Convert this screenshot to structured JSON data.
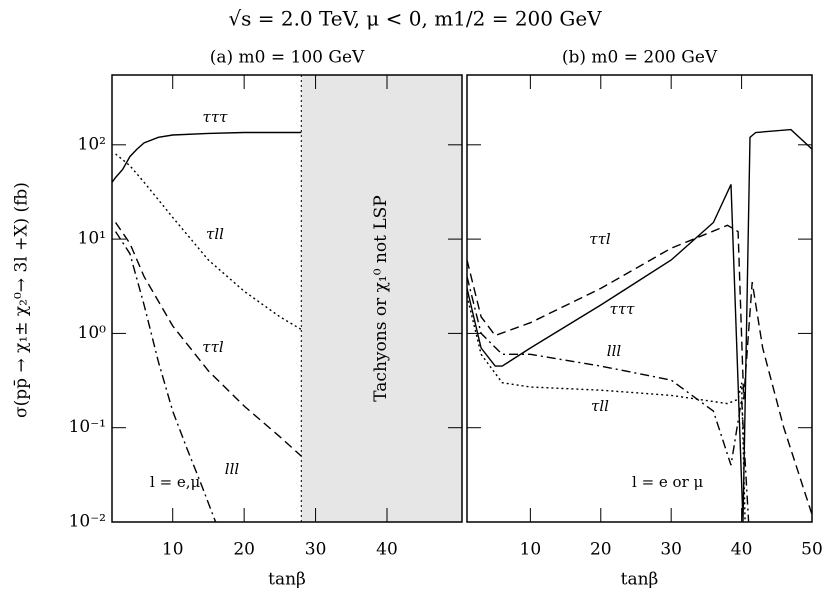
{
  "title": "√s = 2.0 TeV, μ < 0, m1/2 = 200 GeV",
  "chart_data": [
    {
      "type": "line",
      "title": "(a) m0 = 100 GeV",
      "xlabel": "tanβ",
      "ylabel": "σ(pp̄ → χ₁± χ₂⁰→ 3l +X) (fb)",
      "xlim": [
        1.5,
        50.5
      ],
      "ylim": [
        0.01,
        550
      ],
      "log_y": true,
      "xticks": [
        10,
        20,
        30,
        40
      ],
      "yticks": [
        {
          "value": 0.01,
          "label": "10⁻²"
        },
        {
          "value": 0.1,
          "label": "10⁻¹"
        },
        {
          "value": 1,
          "label": "10⁰"
        },
        {
          "value": 10,
          "label": "10¹"
        },
        {
          "value": 100,
          "label": "10²"
        }
      ],
      "shaded_region": {
        "x": [
          28,
          50.5
        ],
        "label": "Tachyons or χ₁⁰ not LSP",
        "color": "#e6e6e6"
      },
      "annotations": [
        "l = e,μ"
      ],
      "series": [
        {
          "name": "τττ",
          "color": "#000000",
          "dash": "solid",
          "x": [
            1.5,
            2,
            3,
            4,
            5,
            6,
            8,
            10,
            15,
            20,
            28
          ],
          "values": [
            40,
            45,
            55,
            75,
            90,
            105,
            120,
            127,
            132,
            135,
            135
          ]
        },
        {
          "name": "τll",
          "color": "#000000",
          "dash": "dotted",
          "x": [
            2,
            4,
            6,
            10,
            15,
            20,
            25,
            28
          ],
          "values": [
            80,
            60,
            40,
            17,
            6,
            2.8,
            1.5,
            1.1
          ]
        },
        {
          "name": "ττl",
          "color": "#000000",
          "dash": "dashed",
          "x": [
            2,
            4,
            6,
            10,
            15,
            20,
            25,
            28
          ],
          "values": [
            15,
            9,
            4,
            1.2,
            0.4,
            0.17,
            0.08,
            0.05
          ]
        },
        {
          "name": "lll",
          "color": "#000000",
          "dash": "dashdot",
          "x": [
            2,
            4,
            6,
            8,
            10,
            12,
            14,
            16
          ],
          "values": [
            12,
            7,
            2,
            0.5,
            0.15,
            0.06,
            0.025,
            0.01
          ]
        }
      ]
    },
    {
      "type": "line",
      "title": "(b) m0 = 200 GeV",
      "xlabel": "tanβ",
      "xlim": [
        1,
        50
      ],
      "ylim": [
        0.01,
        550
      ],
      "log_y": true,
      "xticks": [
        10,
        20,
        30,
        40,
        50
      ],
      "yticks": [
        0.01,
        0.1,
        1,
        10,
        100
      ],
      "annotations": [
        "l = e or μ"
      ],
      "series": [
        {
          "name": "ττl",
          "color": "#000000",
          "dash": "dashed",
          "x": [
            1,
            3,
            5,
            10,
            20,
            30,
            38,
            39.5,
            40.3,
            41.5,
            43,
            46,
            50
          ],
          "values": [
            6,
            1.5,
            0.95,
            1.3,
            3,
            8,
            14,
            12,
            0.2,
            3.5,
            0.7,
            0.1,
            0.012
          ]
        },
        {
          "name": "τττ",
          "color": "#000000",
          "dash": "solid",
          "x": [
            1,
            3,
            5,
            6,
            10,
            20,
            30,
            36,
            38.5,
            40.2,
            41.2,
            42,
            47,
            50
          ],
          "values": [
            3,
            0.7,
            0.45,
            0.45,
            0.7,
            2,
            6,
            15,
            38,
            0.01,
            120,
            135,
            145,
            90
          ]
        },
        {
          "name": "lll",
          "color": "#000000",
          "dash": "dashdot",
          "x": [
            1,
            3,
            6,
            10,
            20,
            30,
            36,
            38.5,
            40,
            41
          ],
          "values": [
            4,
            1,
            0.6,
            0.6,
            0.45,
            0.32,
            0.15,
            0.04,
            0.2,
            0.01
          ]
        },
        {
          "name": "τll",
          "color": "#000000",
          "dash": "dotted",
          "x": [
            1,
            3,
            6,
            10,
            20,
            30,
            38,
            39.5,
            40,
            40.5
          ],
          "values": [
            2.5,
            0.6,
            0.3,
            0.27,
            0.25,
            0.22,
            0.18,
            0.2,
            0.3,
            0.01
          ]
        }
      ]
    }
  ]
}
